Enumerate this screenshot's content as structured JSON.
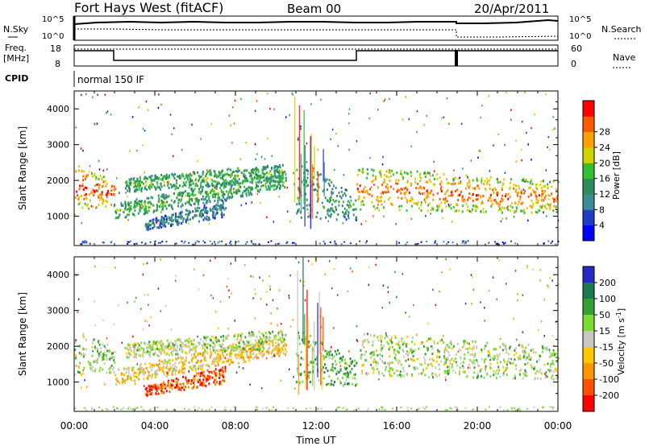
{
  "header": {
    "title": "Fort Hays West (fitACF)",
    "beam": "Beam 00",
    "date": "20/Apr/2011"
  },
  "top_panels": {
    "nsky_label": "N.Sky",
    "nsky_ticks": [
      "10^5",
      "10^0"
    ],
    "nsearch_label": "N.Search",
    "nsearch_ticks": [
      "10^5",
      "10^0"
    ],
    "freq_label": "Freq.",
    "freq_unit": "[MHz]",
    "freq_ticks": [
      "18",
      "8"
    ],
    "nave_label": "Nave",
    "nave_ticks": [
      "60",
      "0"
    ],
    "cpid_label": "CPID",
    "cpid_value": "normal 150 IF"
  },
  "chart_data": [
    {
      "type": "heatmap",
      "name": "power-panel",
      "ylabel": "Slant Range [km]",
      "xlabel": "Time UT",
      "x_ticks": [
        "00:00",
        "04:00",
        "08:00",
        "12:00",
        "16:00",
        "20:00",
        "00:00"
      ],
      "x_range_hours": [
        0,
        24
      ],
      "y_ticks": [
        1000,
        2000,
        3000,
        4000
      ],
      "ylim": [
        180,
        4500
      ],
      "colorbar": {
        "label": "Power [dB]",
        "ticks": [
          "4",
          "8",
          "12",
          "16",
          "20",
          "24",
          "28"
        ],
        "colors": [
          "#0000ff",
          "#1e3cc8",
          "#3c8c96",
          "#2e8b57",
          "#32c032",
          "#d2d200",
          "#ffa000",
          "#ff5a00",
          "#ff0000"
        ]
      },
      "bands": [
        {
          "t0": 0.0,
          "t1": 2.0,
          "lo0": 1200,
          "lo1": 1300,
          "hi0": 2500,
          "hi1": 2000,
          "level": 0.55
        },
        {
          "t0": 2.0,
          "t1": 10.5,
          "lo0": 950,
          "lo1": 1800,
          "hi0": 1400,
          "hi1": 2300,
          "level": 0.35
        },
        {
          "t0": 2.5,
          "t1": 10.5,
          "lo0": 1700,
          "lo1": 2000,
          "hi0": 2100,
          "hi1": 2500,
          "level": 0.35
        },
        {
          "t0": 3.5,
          "t1": 7.5,
          "lo0": 650,
          "lo1": 1000,
          "hi0": 900,
          "hi1": 1500,
          "level": 0.2
        },
        {
          "t0": 11.0,
          "t1": 14.0,
          "lo0": 1000,
          "lo1": 900,
          "hi0": 2600,
          "hi1": 1600,
          "level": 0.3
        },
        {
          "t0": 14.0,
          "t1": 24.0,
          "lo0": 1200,
          "lo1": 1100,
          "hi0": 2400,
          "hi1": 2000,
          "level": 0.5
        }
      ]
    },
    {
      "type": "heatmap",
      "name": "velocity-panel",
      "ylabel": "Slant Range [km]",
      "xlabel": "Time UT",
      "x_ticks": [
        "00:00",
        "04:00",
        "08:00",
        "12:00",
        "16:00",
        "20:00",
        "00:00"
      ],
      "x_range_hours": [
        0,
        24
      ],
      "y_ticks": [
        1000,
        2000,
        3000,
        4000
      ],
      "ylim": [
        180,
        4500
      ],
      "colorbar": {
        "label": "Velocity [m s^-1]",
        "ticks": [
          "200",
          "100",
          "50",
          "15",
          "-15",
          "-50",
          "-100",
          "-200"
        ],
        "colors": [
          "#2828c8",
          "#1e7850",
          "#32a032",
          "#7cdc32",
          "#c8c8c0",
          "#ffc800",
          "#ff9600",
          "#ff5000",
          "#ff0000"
        ]
      },
      "bands": [
        {
          "t0": 0.0,
          "t1": 2.0,
          "lo0": 1200,
          "lo1": 1300,
          "hi0": 2500,
          "hi1": 2000,
          "level": 0.42
        },
        {
          "t0": 2.0,
          "t1": 10.5,
          "lo0": 950,
          "lo1": 1800,
          "hi0": 1400,
          "hi1": 2300,
          "level": 0.6
        },
        {
          "t0": 2.5,
          "t1": 10.5,
          "lo0": 1700,
          "lo1": 2000,
          "hi0": 2100,
          "hi1": 2500,
          "level": 0.45
        },
        {
          "t0": 3.5,
          "t1": 7.5,
          "lo0": 650,
          "lo1": 1000,
          "hi0": 900,
          "hi1": 1500,
          "level": 0.85
        },
        {
          "t0": 11.0,
          "t1": 14.0,
          "lo0": 1000,
          "lo1": 900,
          "hi0": 2600,
          "hi1": 1600,
          "level": 0.3
        },
        {
          "t0": 14.0,
          "t1": 24.0,
          "lo0": 1200,
          "lo1": 1100,
          "hi0": 2400,
          "hi1": 2000,
          "level": 0.45
        }
      ]
    }
  ]
}
